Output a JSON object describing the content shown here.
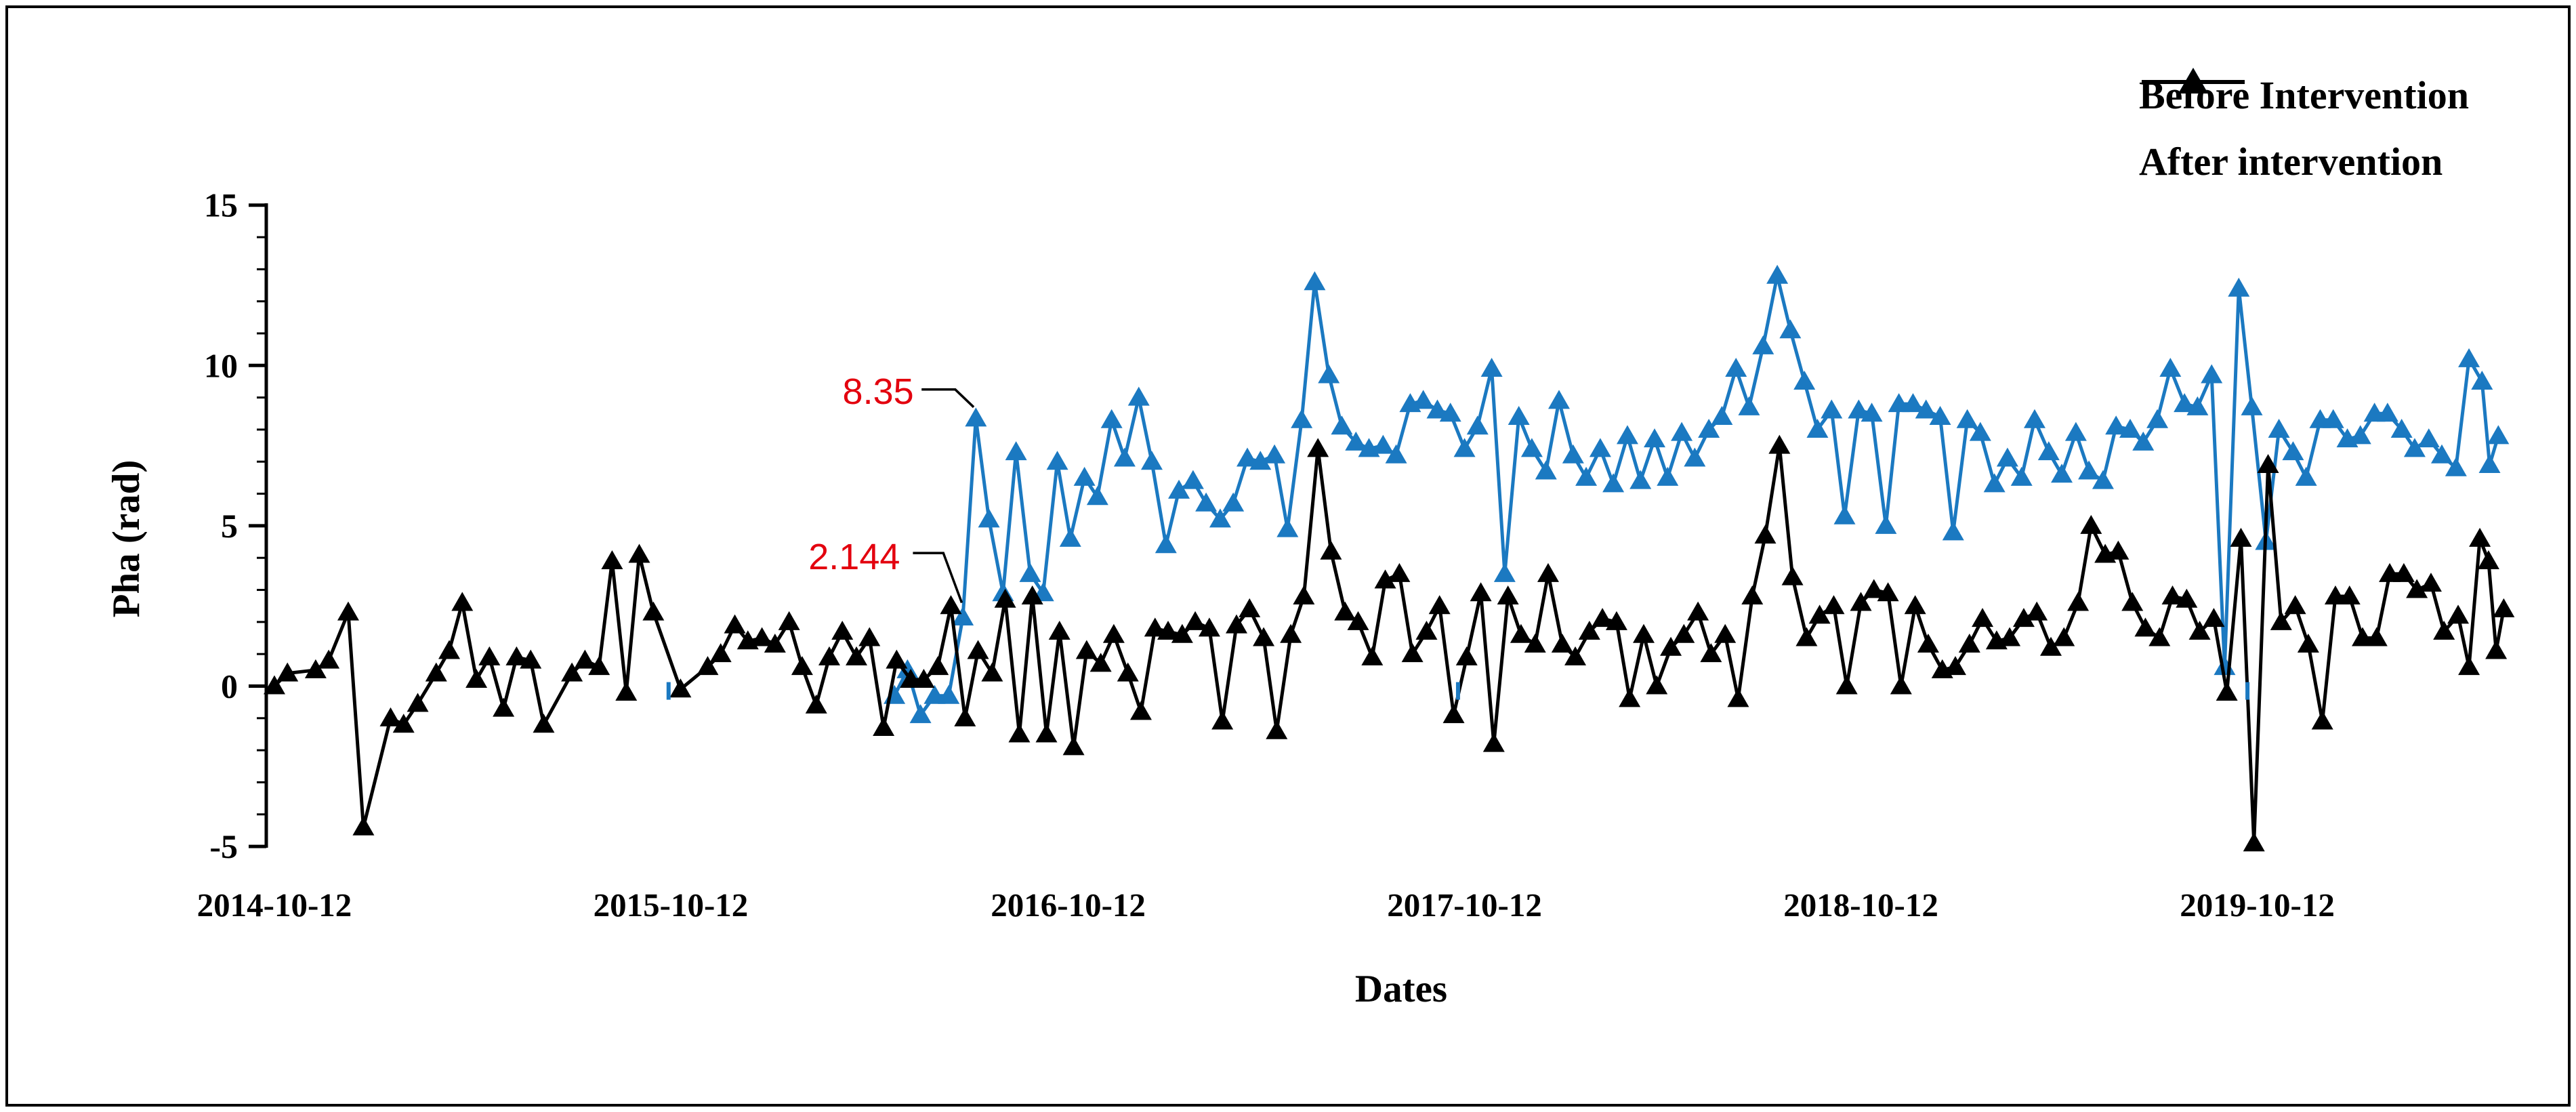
{
  "figure": {
    "background": "#ffffff",
    "border_color": "#000000"
  },
  "chart_data": {
    "type": "line",
    "title": "",
    "xlabel": "Dates",
    "ylabel": "Pha (rad)",
    "grid": false,
    "legend_position": "top-right-inside",
    "x_axis": {
      "unit": "days since 2014-10-12",
      "tick_days": [
        0,
        365,
        731,
        1096,
        1461,
        1826
      ],
      "tick_labels": [
        "2014-10-12",
        "2015-10-12",
        "2016-10-12",
        "2017-10-12",
        "2018-10-12",
        "2019-10-12"
      ]
    },
    "y_axis": {
      "ticks": [
        15,
        10,
        5,
        0,
        -5
      ],
      "minor_step": 1,
      "range": [
        -5,
        15
      ]
    },
    "annotations": [
      {
        "label": "8.35",
        "color": "#E3000E",
        "target_day": 646,
        "target_value": 8.35,
        "label_day": 556,
        "label_value": 9.2,
        "leader": [
          [
            596,
            9.25
          ],
          [
            627,
            9.25
          ],
          [
            644,
            8.7
          ]
        ]
      },
      {
        "label": "2.144",
        "color": "#E3000E",
        "target_day": 634,
        "target_value": 2.144,
        "label_day": 534,
        "label_value": 4.05,
        "leader": [
          [
            588,
            4.15
          ],
          [
            616,
            4.15
          ],
          [
            633,
            2.6
          ]
        ]
      }
    ],
    "stray_marks": {
      "color": "#1B79C1",
      "shape": "vertical-dash",
      "points": [
        [
          363,
          -0.15
        ],
        [
          1090,
          -0.15
        ],
        [
          1817,
          -0.15
        ]
      ]
    },
    "series": [
      {
        "name": "Before Intervention",
        "color": "#1B79C1",
        "marker": "triangle",
        "points": [
          [
            571,
            -0.3
          ],
          [
            583,
            0.5
          ],
          [
            595,
            -0.9
          ],
          [
            608,
            -0.3
          ],
          [
            621,
            -0.3
          ],
          [
            634,
            2.144
          ],
          [
            646,
            8.35
          ],
          [
            658,
            5.2
          ],
          [
            671,
            2.9
          ],
          [
            683,
            7.3
          ],
          [
            696,
            3.5
          ],
          [
            708,
            2.9
          ],
          [
            721,
            7.0
          ],
          [
            733,
            4.6
          ],
          [
            746,
            6.5
          ],
          [
            758,
            5.9
          ],
          [
            771,
            8.3
          ],
          [
            783,
            7.1
          ],
          [
            796,
            9.0
          ],
          [
            808,
            7.0
          ],
          [
            821,
            4.4
          ],
          [
            833,
            6.1
          ],
          [
            846,
            6.4
          ],
          [
            858,
            5.7
          ],
          [
            871,
            5.2
          ],
          [
            883,
            5.7
          ],
          [
            896,
            7.1
          ],
          [
            908,
            7.0
          ],
          [
            921,
            7.2
          ],
          [
            933,
            4.9
          ],
          [
            946,
            8.3
          ],
          [
            958,
            12.6
          ],
          [
            971,
            9.7
          ],
          [
            983,
            8.1
          ],
          [
            996,
            7.6
          ],
          [
            1008,
            7.4
          ],
          [
            1021,
            7.5
          ],
          [
            1033,
            7.2
          ],
          [
            1046,
            8.8
          ],
          [
            1058,
            8.9
          ],
          [
            1071,
            8.6
          ],
          [
            1083,
            8.5
          ],
          [
            1096,
            7.4
          ],
          [
            1108,
            8.1
          ],
          [
            1121,
            9.9
          ],
          [
            1133,
            3.5
          ],
          [
            1146,
            8.4
          ],
          [
            1158,
            7.4
          ],
          [
            1171,
            6.7
          ],
          [
            1183,
            8.9
          ],
          [
            1196,
            7.2
          ],
          [
            1208,
            6.5
          ],
          [
            1221,
            7.4
          ],
          [
            1233,
            6.3
          ],
          [
            1246,
            7.8
          ],
          [
            1258,
            6.4
          ],
          [
            1271,
            7.7
          ],
          [
            1283,
            6.5
          ],
          [
            1296,
            7.9
          ],
          [
            1308,
            7.1
          ],
          [
            1321,
            8.0
          ],
          [
            1333,
            8.4
          ],
          [
            1346,
            9.9
          ],
          [
            1358,
            8.7
          ],
          [
            1371,
            10.6
          ],
          [
            1384,
            12.8
          ],
          [
            1396,
            11.1
          ],
          [
            1409,
            9.5
          ],
          [
            1421,
            8.0
          ],
          [
            1434,
            8.6
          ],
          [
            1446,
            5.3
          ],
          [
            1459,
            8.6
          ],
          [
            1471,
            8.5
          ],
          [
            1484,
            5.0
          ],
          [
            1496,
            8.8
          ],
          [
            1509,
            8.8
          ],
          [
            1521,
            8.6
          ],
          [
            1534,
            8.4
          ],
          [
            1546,
            4.8
          ],
          [
            1559,
            8.3
          ],
          [
            1571,
            7.9
          ],
          [
            1584,
            6.3
          ],
          [
            1596,
            7.1
          ],
          [
            1609,
            6.5
          ],
          [
            1621,
            8.3
          ],
          [
            1634,
            7.3
          ],
          [
            1646,
            6.6
          ],
          [
            1659,
            7.9
          ],
          [
            1671,
            6.7
          ],
          [
            1684,
            6.4
          ],
          [
            1696,
            8.1
          ],
          [
            1709,
            8.0
          ],
          [
            1721,
            7.6
          ],
          [
            1734,
            8.3
          ],
          [
            1746,
            9.9
          ],
          [
            1759,
            8.8
          ],
          [
            1771,
            8.7
          ],
          [
            1784,
            9.7
          ],
          [
            1796,
            0.6
          ],
          [
            1809,
            12.4
          ],
          [
            1821,
            8.7
          ],
          [
            1834,
            4.5
          ],
          [
            1846,
            8.0
          ],
          [
            1859,
            7.3
          ],
          [
            1871,
            6.5
          ],
          [
            1884,
            8.3
          ],
          [
            1896,
            8.3
          ],
          [
            1909,
            7.7
          ],
          [
            1921,
            7.8
          ],
          [
            1934,
            8.5
          ],
          [
            1946,
            8.5
          ],
          [
            1959,
            8.0
          ],
          [
            1971,
            7.4
          ],
          [
            1984,
            7.7
          ],
          [
            1996,
            7.2
          ],
          [
            2009,
            6.8
          ],
          [
            2021,
            10.2
          ],
          [
            2033,
            9.5
          ],
          [
            2040,
            6.9
          ],
          [
            2048,
            7.8
          ]
        ]
      },
      {
        "name": "After intervention",
        "color": "#000000",
        "marker": "triangle",
        "points": [
          [
            0,
            0.0
          ],
          [
            12,
            0.4
          ],
          [
            38,
            0.5
          ],
          [
            50,
            0.8
          ],
          [
            68,
            2.3
          ],
          [
            82,
            -4.4
          ],
          [
            107,
            -1.0
          ],
          [
            119,
            -1.2
          ],
          [
            132,
            -0.55
          ],
          [
            149,
            0.4
          ],
          [
            161,
            1.1
          ],
          [
            173,
            2.6
          ],
          [
            186,
            0.2
          ],
          [
            198,
            0.9
          ],
          [
            211,
            -0.7
          ],
          [
            223,
            0.9
          ],
          [
            236,
            0.8
          ],
          [
            248,
            -1.2
          ],
          [
            274,
            0.4
          ],
          [
            286,
            0.8
          ],
          [
            299,
            0.6
          ],
          [
            311,
            3.9
          ],
          [
            324,
            -0.2
          ],
          [
            336,
            4.1
          ],
          [
            349,
            2.3
          ],
          [
            374,
            -0.1
          ],
          [
            399,
            0.6
          ],
          [
            411,
            1.0
          ],
          [
            424,
            1.9
          ],
          [
            436,
            1.4
          ],
          [
            449,
            1.5
          ],
          [
            461,
            1.3
          ],
          [
            474,
            2.0
          ],
          [
            486,
            0.6
          ],
          [
            499,
            -0.6
          ],
          [
            511,
            0.9
          ],
          [
            523,
            1.7
          ],
          [
            536,
            0.9
          ],
          [
            548,
            1.5
          ],
          [
            561,
            -1.3
          ],
          [
            573,
            0.8
          ],
          [
            586,
            0.2
          ],
          [
            598,
            0.2
          ],
          [
            611,
            0.6
          ],
          [
            623,
            2.5
          ],
          [
            636,
            -1.0
          ],
          [
            648,
            1.1
          ],
          [
            661,
            0.4
          ],
          [
            673,
            2.7
          ],
          [
            686,
            -1.5
          ],
          [
            698,
            2.8
          ],
          [
            711,
            -1.5
          ],
          [
            723,
            1.7
          ],
          [
            736,
            -1.9
          ],
          [
            748,
            1.1
          ],
          [
            761,
            0.7
          ],
          [
            773,
            1.6
          ],
          [
            786,
            0.4
          ],
          [
            798,
            -0.8
          ],
          [
            811,
            1.8
          ],
          [
            823,
            1.7
          ],
          [
            836,
            1.6
          ],
          [
            848,
            2.0
          ],
          [
            861,
            1.8
          ],
          [
            873,
            -1.1
          ],
          [
            886,
            1.9
          ],
          [
            898,
            2.4
          ],
          [
            911,
            1.5
          ],
          [
            923,
            -1.4
          ],
          [
            936,
            1.6
          ],
          [
            948,
            2.8
          ],
          [
            961,
            7.4
          ],
          [
            973,
            4.2
          ],
          [
            986,
            2.3
          ],
          [
            998,
            2.0
          ],
          [
            1011,
            0.9
          ],
          [
            1023,
            3.3
          ],
          [
            1036,
            3.5
          ],
          [
            1048,
            1.0
          ],
          [
            1061,
            1.7
          ],
          [
            1073,
            2.5
          ],
          [
            1086,
            -0.9
          ],
          [
            1098,
            0.9
          ],
          [
            1111,
            2.9
          ],
          [
            1123,
            -1.8
          ],
          [
            1136,
            2.8
          ],
          [
            1148,
            1.6
          ],
          [
            1161,
            1.3
          ],
          [
            1173,
            3.5
          ],
          [
            1186,
            1.3
          ],
          [
            1198,
            0.9
          ],
          [
            1211,
            1.7
          ],
          [
            1223,
            2.1
          ],
          [
            1236,
            2.0
          ],
          [
            1248,
            -0.4
          ],
          [
            1261,
            1.6
          ],
          [
            1273,
            0.0
          ],
          [
            1286,
            1.2
          ],
          [
            1298,
            1.6
          ],
          [
            1311,
            2.3
          ],
          [
            1323,
            1.0
          ],
          [
            1336,
            1.6
          ],
          [
            1348,
            -0.4
          ],
          [
            1361,
            2.8
          ],
          [
            1373,
            4.7
          ],
          [
            1386,
            7.5
          ],
          [
            1398,
            3.4
          ],
          [
            1411,
            1.5
          ],
          [
            1423,
            2.2
          ],
          [
            1436,
            2.5
          ],
          [
            1448,
            0.0
          ],
          [
            1461,
            2.6
          ],
          [
            1473,
            3.0
          ],
          [
            1486,
            2.9
          ],
          [
            1498,
            0.0
          ],
          [
            1511,
            2.5
          ],
          [
            1523,
            1.3
          ],
          [
            1536,
            0.5
          ],
          [
            1548,
            0.6
          ],
          [
            1561,
            1.3
          ],
          [
            1573,
            2.1
          ],
          [
            1586,
            1.4
          ],
          [
            1598,
            1.5
          ],
          [
            1611,
            2.1
          ],
          [
            1623,
            2.3
          ],
          [
            1636,
            1.2
          ],
          [
            1648,
            1.5
          ],
          [
            1661,
            2.6
          ],
          [
            1673,
            5.0
          ],
          [
            1686,
            4.1
          ],
          [
            1698,
            4.2
          ],
          [
            1711,
            2.6
          ],
          [
            1723,
            1.8
          ],
          [
            1736,
            1.5
          ],
          [
            1748,
            2.8
          ],
          [
            1761,
            2.7
          ],
          [
            1773,
            1.7
          ],
          [
            1786,
            2.1
          ],
          [
            1798,
            -0.2
          ],
          [
            1811,
            4.6
          ],
          [
            1823,
            -4.9
          ],
          [
            1836,
            6.9
          ],
          [
            1848,
            2.0
          ],
          [
            1861,
            2.5
          ],
          [
            1873,
            1.3
          ],
          [
            1886,
            -1.1
          ],
          [
            1898,
            2.8
          ],
          [
            1911,
            2.8
          ],
          [
            1923,
            1.5
          ],
          [
            1936,
            1.5
          ],
          [
            1948,
            3.5
          ],
          [
            1961,
            3.5
          ],
          [
            1973,
            3.0
          ],
          [
            1986,
            3.2
          ],
          [
            1998,
            1.7
          ],
          [
            2011,
            2.2
          ],
          [
            2021,
            0.6
          ],
          [
            2031,
            4.6
          ],
          [
            2039,
            3.9
          ],
          [
            2046,
            1.1
          ],
          [
            2053,
            2.4
          ]
        ]
      }
    ]
  }
}
